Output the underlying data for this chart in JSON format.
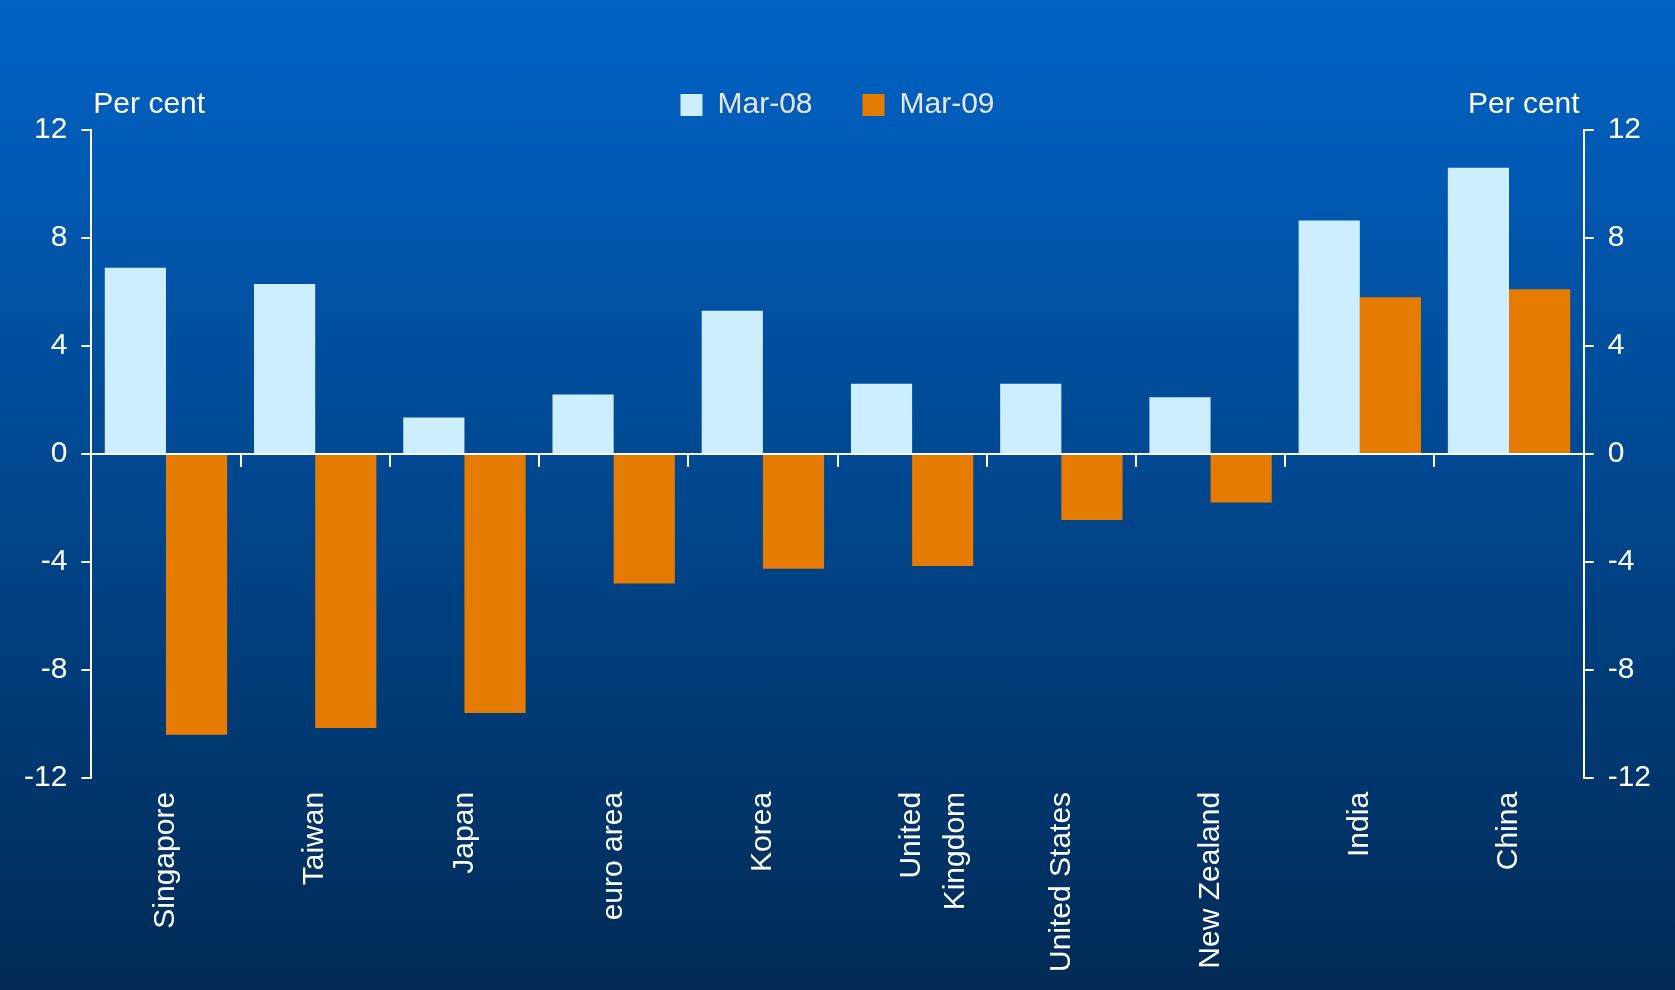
{
  "chart_data": {
    "type": "bar",
    "ylabel": "Per cent",
    "y2label": "Per cent",
    "categories": [
      "Singapore",
      "Taiwan",
      "Japan",
      "euro area",
      "Korea",
      "United\nKingdom",
      "United States",
      "New Zealand",
      "India",
      "China"
    ],
    "series": [
      {
        "name": "Mar-08",
        "color": "#cdeeff",
        "values": [
          6.9,
          6.3,
          1.35,
          2.2,
          5.3,
          2.6,
          2.6,
          2.1,
          8.65,
          10.6
        ]
      },
      {
        "name": "Mar-09",
        "color": "#e57b00",
        "values": [
          -10.4,
          -10.15,
          -9.6,
          -4.8,
          -4.25,
          -4.15,
          -2.45,
          -1.8,
          5.8,
          6.1
        ]
      }
    ],
    "ylim": [
      -12,
      12
    ],
    "yticks": [
      -12,
      -8,
      -4,
      0,
      4,
      8,
      12
    ],
    "y2lim": [
      -12,
      12
    ],
    "y2ticks": [
      -12,
      -8,
      -4,
      0,
      4,
      8,
      12
    ],
    "legend": "top"
  }
}
